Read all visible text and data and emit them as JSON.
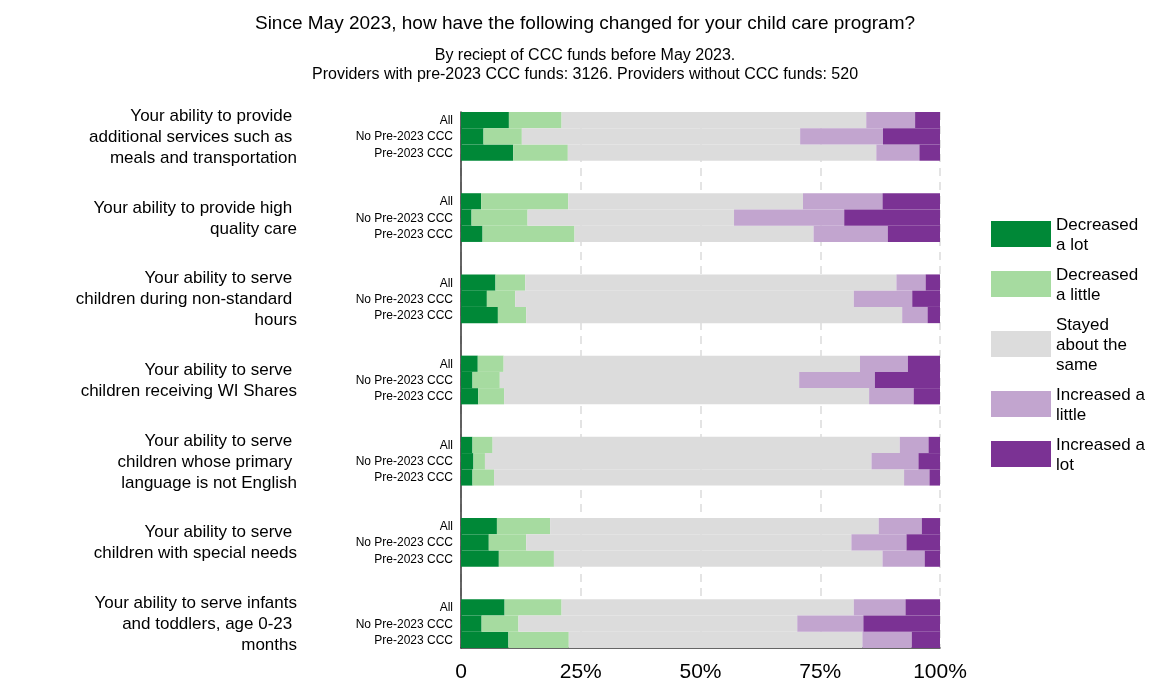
{
  "chart_data": {
    "type": "bar",
    "orientation": "horizontal",
    "stacked": true,
    "title": "Since May 2023, how have the following changed for your child care program?",
    "subtitle": "By reciept of CCC funds before May 2023.\nProviders with pre-2023 CCC funds: 3126. Providers without CCC funds: 520",
    "categories": [
      "All",
      "No Pre-2023 CCC",
      "Pre-2023 CCC",
      null,
      null,
      "All",
      "No Pre-2023 CCC",
      "Pre-2023 CCC",
      null,
      null,
      "All",
      "No Pre-2023 CCC",
      "Pre-2023 CCC",
      null,
      null,
      "All",
      "No Pre-2023 CCC",
      "Pre-2023 CCC",
      null,
      null,
      "All",
      "No Pre-2023 CCC",
      "Pre-2023 CCC",
      null,
      null,
      "All",
      "No Pre-2023 CCC",
      "Pre-2023 CCC",
      null,
      null,
      "All",
      "No Pre-2023 CCC",
      "Pre-2023 CCC"
    ],
    "series": [
      {
        "name": "Decreased a lot",
        "color": "#008837",
        "values": [
          10.0,
          4.7,
          10.9,
          null,
          null,
          4.2,
          2.2,
          4.5,
          null,
          null,
          7.2,
          5.4,
          7.7,
          null,
          null,
          3.5,
          2.4,
          3.6,
          null,
          null,
          2.4,
          2.6,
          2.4,
          null,
          null,
          7.5,
          5.8,
          7.9,
          null,
          null,
          9.1,
          4.3,
          9.9
        ]
      },
      {
        "name": "Decreased a little",
        "color": "#a6dba0",
        "values": [
          11.0,
          8.0,
          11.4,
          null,
          null,
          18.2,
          11.7,
          19.2,
          null,
          null,
          6.2,
          5.9,
          5.9,
          null,
          null,
          5.4,
          5.7,
          5.4,
          null,
          null,
          4.2,
          2.4,
          4.5,
          null,
          null,
          11.1,
          7.8,
          11.5,
          null,
          null,
          11.9,
          7.7,
          12.6
        ]
      },
      {
        "name": "Stayed about the same",
        "color": "#dcdcdc",
        "values": [
          63.6,
          58.1,
          64.4,
          null,
          null,
          49.0,
          43.1,
          49.9,
          null,
          null,
          77.5,
          70.7,
          78.5,
          null,
          null,
          74.4,
          62.5,
          76.2,
          null,
          null,
          85.0,
          80.7,
          85.6,
          null,
          null,
          68.6,
          67.9,
          68.6,
          null,
          null,
          61.0,
          58.2,
          61.3
        ]
      },
      {
        "name": "Increased a little",
        "color": "#c2a5cf",
        "values": [
          10.2,
          17.3,
          9.0,
          null,
          null,
          16.6,
          23.0,
          15.5,
          null,
          null,
          6.1,
          12.2,
          5.3,
          null,
          null,
          10.0,
          15.8,
          9.3,
          null,
          null,
          6.0,
          9.8,
          5.3,
          null,
          null,
          9.0,
          11.5,
          8.8,
          null,
          null,
          10.8,
          13.8,
          10.3
        ]
      },
      {
        "name": "Increased a lot",
        "color": "#7b3294",
        "values": [
          5.2,
          11.9,
          4.3,
          null,
          null,
          12.0,
          20.0,
          10.9,
          null,
          null,
          3.0,
          5.8,
          2.6,
          null,
          null,
          6.7,
          13.6,
          5.5,
          null,
          null,
          2.4,
          4.5,
          2.2,
          null,
          null,
          3.8,
          7.0,
          3.2,
          null,
          null,
          7.2,
          16.0,
          5.9
        ]
      }
    ],
    "xlim": [
      0,
      100
    ],
    "xticks": [
      0,
      {
        "value": 25,
        "label": "25%"
      },
      {
        "value": 50,
        "label": "50%"
      },
      {
        "value": 75,
        "label": "75%"
      },
      {
        "value": 100,
        "label": "100%"
      }
    ],
    "grid": "x",
    "legend": "right",
    "annotations": [
      "Your ability to provide additional services such as meals and transportation",
      "Your ability to provide high quality care",
      "Your ability to serve children during non-standard hours",
      "Your ability to serve children receiving WI Shares",
      "Your ability to serve children whose primary language is not English",
      "Your ability to serve children with special needs",
      "Your ability to serve infants and toddlers, age 0-23 months"
    ]
  }
}
